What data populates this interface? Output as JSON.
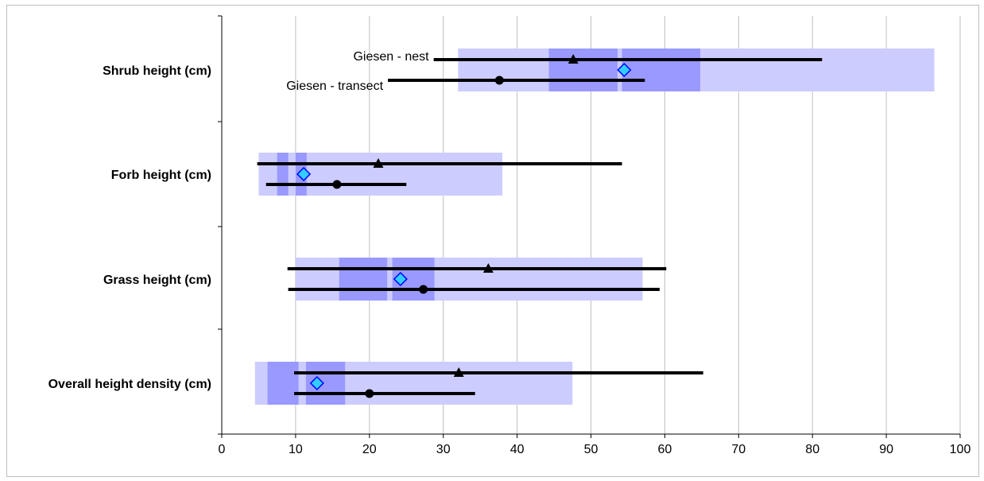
{
  "chart_data": {
    "type": "range-bar",
    "title": "",
    "xlabel": "",
    "ylabel": "",
    "xlim": [
      0,
      100
    ],
    "xticks": [
      0,
      10,
      20,
      30,
      40,
      50,
      60,
      70,
      80,
      90,
      100
    ],
    "grid": "vertical",
    "categories": [
      "Shrub height (cm)",
      "Forb height (cm)",
      "Grass height (cm)",
      "Overall height density (cm)"
    ],
    "light_ranges": [
      [
        32,
        96.5
      ],
      [
        5,
        38
      ],
      [
        10,
        57
      ],
      [
        4.5,
        47.5
      ]
    ],
    "dark_ranges": [
      [
        [
          44.3,
          53.6
        ],
        [
          54.2,
          64.8
        ]
      ],
      [
        [
          7.5,
          9
        ],
        [
          10,
          11.5
        ]
      ],
      [
        [
          15.9,
          22.4
        ],
        [
          23.1,
          28.8
        ]
      ],
      [
        [
          6.2,
          10.4
        ],
        [
          11.4,
          16.7
        ]
      ]
    ],
    "series": [
      {
        "name": "Giesen - nest",
        "marker": "triangle",
        "means": [
          47.6,
          21.2,
          36.1,
          32.1
        ],
        "ranges": [
          [
            28.7,
            81.3
          ],
          [
            4.8,
            54.2
          ],
          [
            8.9,
            60.2
          ],
          [
            9.8,
            65.2
          ]
        ]
      },
      {
        "name": "Giesen - transect",
        "marker": "circle",
        "means": [
          37.6,
          15.6,
          27.3,
          20.0
        ],
        "ranges": [
          [
            22.5,
            57.3
          ],
          [
            6.0,
            25.0
          ],
          [
            9.0,
            59.3
          ],
          [
            9.8,
            34.3
          ]
        ]
      },
      {
        "name": "",
        "marker": "diamond",
        "means": [
          54.5,
          11.1,
          24.2,
          12.9
        ]
      }
    ],
    "colors": {
      "light_band": "#ccccff",
      "dark_band": "#9999ff",
      "range_line": "#000000",
      "diamond_fill": "#33ccff",
      "diamond_stroke": "#0000ff",
      "grid": "#c0c0c0",
      "axis": "#000000"
    }
  }
}
